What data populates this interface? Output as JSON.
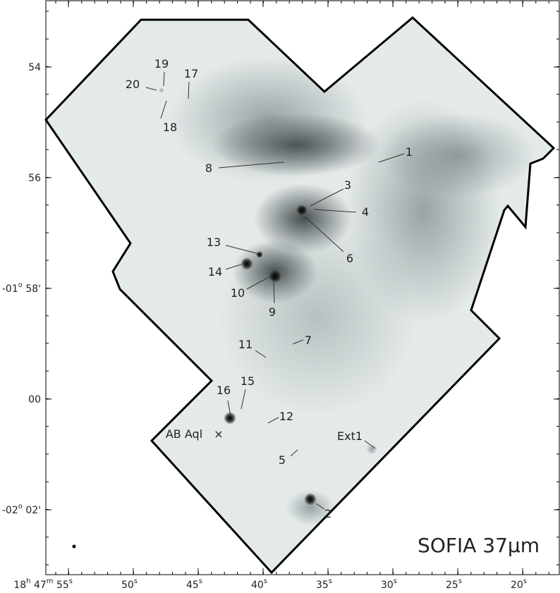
{
  "axes": {
    "y_ticks": [
      [
        "54"
      ],
      [
        "56"
      ],
      [
        "-01",
        "o",
        " 58'"
      ],
      [
        "00"
      ],
      [
        "-02",
        "o",
        " 02'"
      ]
    ],
    "x_ticks": [
      [
        "18",
        "h",
        " 47",
        "m",
        " 55",
        "s"
      ],
      [
        "50",
        "s"
      ],
      [
        "45",
        "s"
      ],
      [
        "40",
        "s"
      ],
      [
        "35",
        "s"
      ],
      [
        "30",
        "s"
      ],
      [
        "25",
        "s"
      ],
      [
        "20",
        "s"
      ]
    ]
  },
  "sources": [
    "1",
    "2",
    "3",
    "4",
    "5",
    "6",
    "7",
    "8",
    "9",
    "10",
    "11",
    "12",
    "13",
    "14",
    "15",
    "16",
    "17",
    "18",
    "19",
    "20"
  ],
  "extra_labels": {
    "ext1": "Ext1",
    "ab_aql": "AB Aql",
    "marker": "×"
  },
  "caption": "SOFIA 37μm"
}
